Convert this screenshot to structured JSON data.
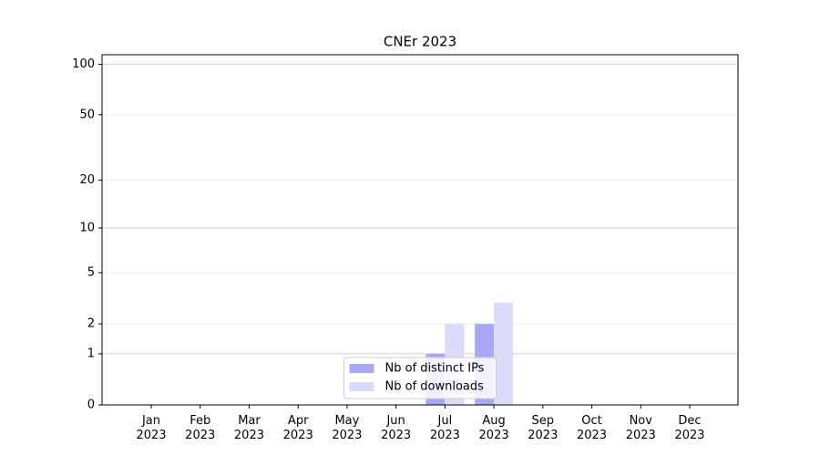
{
  "chart_data": {
    "type": "bar",
    "title": "CNEr 2023",
    "categories": [
      "Jan\n2023",
      "Feb\n2023",
      "Mar\n2023",
      "Apr\n2023",
      "May\n2023",
      "Jun\n2023",
      "Jul\n2023",
      "Aug\n2023",
      "Sep\n2023",
      "Oct\n2023",
      "Nov\n2023",
      "Dec\n2023"
    ],
    "series": [
      {
        "name": "Nb of distinct IPs",
        "color": "#a8a8f4",
        "values": [
          0,
          0,
          0,
          0,
          0,
          0,
          1,
          2,
          0,
          0,
          0,
          0
        ]
      },
      {
        "name": "Nb of downloads",
        "color": "#dadaf9",
        "values": [
          0,
          0,
          0,
          0,
          0,
          0,
          2,
          3,
          0,
          0,
          0,
          0
        ]
      }
    ],
    "yscale": "log1p",
    "ylim": [
      0,
      114
    ],
    "yticks": [
      0,
      1,
      2,
      5,
      10,
      20,
      50,
      100
    ],
    "grid": true,
    "legend": "lower center"
  }
}
